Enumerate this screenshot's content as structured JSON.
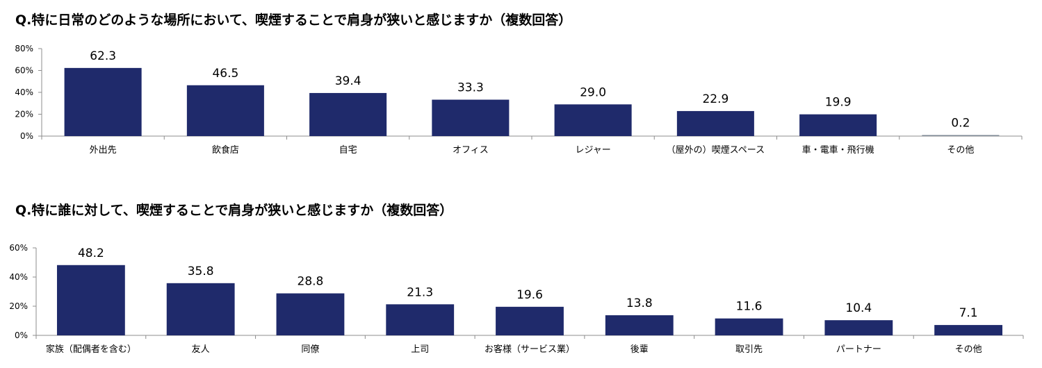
{
  "chart_data": [
    {
      "type": "bar",
      "title": "Q.特に日常のどのような場所において、喫煙することで肩身が狭いと感じますか（複数回答）",
      "categories": [
        "外出先",
        "飲食店",
        "自宅",
        "オフィス",
        "レジャー",
        "（屋外の）喫煙スペース",
        "車・電車・飛行機",
        "その他"
      ],
      "values": [
        62.3,
        46.5,
        39.4,
        33.3,
        29.0,
        22.9,
        19.9,
        0.2
      ],
      "value_labels": [
        "62.3",
        "46.5",
        "39.4",
        "33.3",
        "29.0",
        "22.9",
        "19.9",
        "0.2"
      ],
      "yticks": [
        "0%",
        "20%",
        "40%",
        "60%",
        "80%"
      ],
      "ylim": [
        0,
        80
      ],
      "grid": false,
      "bar_color": "#1f2a6b",
      "other_bar_color": "#7f8a96"
    },
    {
      "type": "bar",
      "title": "Q.特に誰に対して、喫煙することで肩身が狭いと感じますか（複数回答）",
      "categories": [
        "家族（配偶者を含む）",
        "友人",
        "同僚",
        "上司",
        "お客様（サービス業）",
        "後輩",
        "取引先",
        "パートナー",
        "その他"
      ],
      "values": [
        48.2,
        35.8,
        28.8,
        21.3,
        19.6,
        13.8,
        11.6,
        10.4,
        7.1
      ],
      "value_labels": [
        "48.2",
        "35.8",
        "28.8",
        "21.3",
        "19.6",
        "13.8",
        "11.6",
        "10.4",
        "7.1"
      ],
      "yticks": [
        "0%",
        "20%",
        "40%",
        "60%"
      ],
      "ylim": [
        0,
        60
      ],
      "grid": false,
      "bar_color": "#1f2a6b"
    }
  ]
}
